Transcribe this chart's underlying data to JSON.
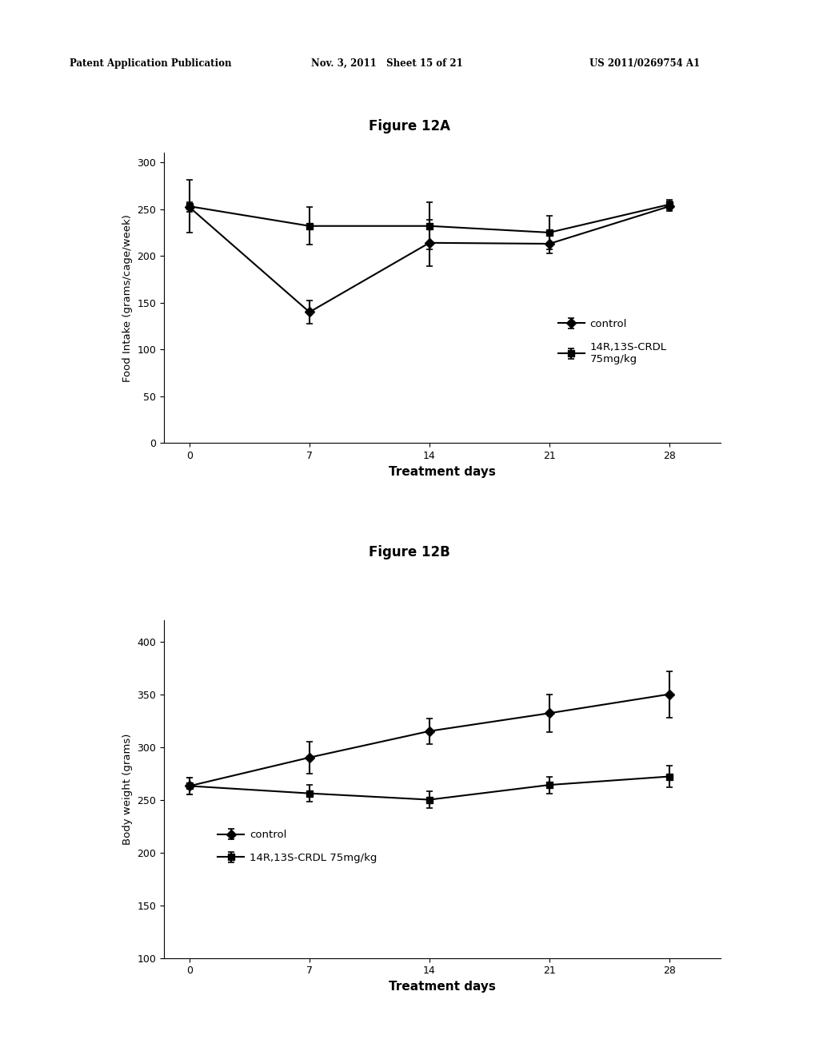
{
  "fig_title_a": "Figure 12A",
  "fig_title_b": "Figure 12B",
  "header_left": "Patent Application Publication",
  "header_mid": "Nov. 3, 2011   Sheet 15 of 21",
  "header_right": "US 2011/0269754 A1",
  "chart_a": {
    "x": [
      0,
      7,
      14,
      21,
      28
    ],
    "control_y": [
      252,
      140,
      214,
      213,
      253
    ],
    "control_yerr": [
      5,
      12,
      25,
      10,
      5
    ],
    "treatment_y": [
      253,
      232,
      232,
      225,
      255
    ],
    "treatment_yerr": [
      28,
      20,
      25,
      18,
      5
    ],
    "ylabel": "Food Intake (grams/cage/week)",
    "xlabel": "Treatment days",
    "ylim": [
      0,
      310
    ],
    "yticks": [
      0,
      50,
      100,
      150,
      200,
      250,
      300
    ],
    "xticks": [
      0,
      7,
      14,
      21,
      28
    ]
  },
  "chart_b": {
    "x": [
      0,
      7,
      14,
      21,
      28
    ],
    "control_y": [
      263,
      290,
      315,
      332,
      350
    ],
    "control_yerr": [
      8,
      15,
      12,
      18,
      22
    ],
    "treatment_y": [
      263,
      256,
      250,
      264,
      272
    ],
    "treatment_yerr": [
      8,
      8,
      8,
      8,
      10
    ],
    "ylabel": "Body weight (grams)",
    "xlabel": "Treatment days",
    "ylim": [
      100,
      420
    ],
    "yticks": [
      100.0,
      150.0,
      200.0,
      250.0,
      300.0,
      350.0,
      400.0
    ],
    "xticks": [
      0,
      7,
      14,
      21,
      28
    ]
  },
  "legend_control": "control",
  "legend_treatment_a": "14R,13S-CRDL\n75mg/kg",
  "legend_treatment_b": "14R,13S-CRDL 75mg/kg",
  "bg_color": "#ffffff"
}
